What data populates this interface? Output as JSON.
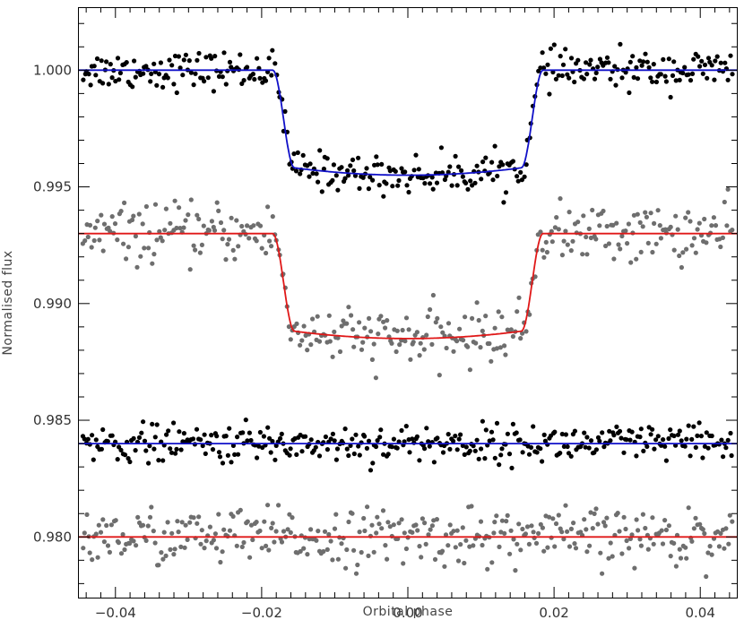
{
  "chart_data": {
    "type": "scatter",
    "xlabel": "Orbital phase",
    "ylabel": "Normalised flux",
    "xlim": [
      -0.045,
      0.045
    ],
    "ylim": [
      0.9774,
      1.0027
    ],
    "x_ticks": [
      -0.04,
      -0.02,
      0.0,
      0.02,
      0.04
    ],
    "x_tick_labels": [
      "−0.04",
      "−0.02",
      "0.00",
      "0.02",
      "0.04"
    ],
    "x_minor_step": 0.002,
    "y_ticks": [
      0.98,
      0.985,
      0.99,
      0.995,
      1.0
    ],
    "y_tick_labels": [
      "0.980",
      "0.985",
      "0.990",
      "0.995",
      "1.000"
    ],
    "y_minor_step": 0.001,
    "grid": false,
    "legend": "none",
    "series": [
      {
        "kind": "transit-light-curve",
        "point_color": "#000000",
        "model_color": "#1010c8",
        "baseline": 1.0,
        "depth": 0.0045,
        "t1": 0.0185,
        "t2": 0.0155,
        "scatter_sigma": 0.0004
      },
      {
        "kind": "transit-light-curve",
        "point_color": "#6e6e6e",
        "model_color": "#e01818",
        "baseline": 0.993,
        "depth": 0.0045,
        "t1": 0.0185,
        "t2": 0.0155,
        "scatter_sigma": 0.0006
      },
      {
        "kind": "residuals",
        "point_color": "#000000",
        "model_color": "#1010c8",
        "baseline": 0.984,
        "scatter_sigma": 0.0004
      },
      {
        "kind": "residuals",
        "point_color": "#6e6e6e",
        "model_color": "#e01818",
        "baseline": 0.98,
        "scatter_sigma": 0.0006
      }
    ]
  }
}
